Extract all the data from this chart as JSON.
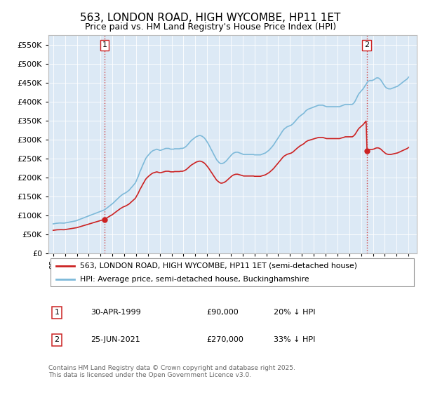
{
  "title": "563, LONDON ROAD, HIGH WYCOMBE, HP11 1ET",
  "subtitle": "Price paid vs. HM Land Registry's House Price Index (HPI)",
  "hpi_label": "HPI: Average price, semi-detached house, Buckinghamshire",
  "property_label": "563, LONDON ROAD, HIGH WYCOMBE, HP11 1ET (semi-detached house)",
  "footnote": "Contains HM Land Registry data © Crown copyright and database right 2025.\nThis data is licensed under the Open Government Licence v3.0.",
  "sale1": {
    "label": "1",
    "date": "30-APR-1999",
    "price": "£90,000",
    "hpi_rel": "20% ↓ HPI"
  },
  "sale2": {
    "label": "2",
    "date": "25-JUN-2021",
    "price": "£270,000",
    "hpi_rel": "33% ↓ HPI"
  },
  "ylim": [
    0,
    575000
  ],
  "yticks": [
    0,
    50000,
    100000,
    150000,
    200000,
    250000,
    300000,
    350000,
    400000,
    450000,
    500000,
    550000
  ],
  "hpi_color": "#7db9d9",
  "property_color": "#cc2222",
  "vline_color": "#cc2222",
  "background_color": "#ffffff",
  "chart_bg_color": "#dce9f5",
  "grid_color": "#ffffff",
  "sale1_year": 1999.33,
  "sale2_year": 2021.48,
  "sale1_price": 90000,
  "sale2_price": 270000
}
